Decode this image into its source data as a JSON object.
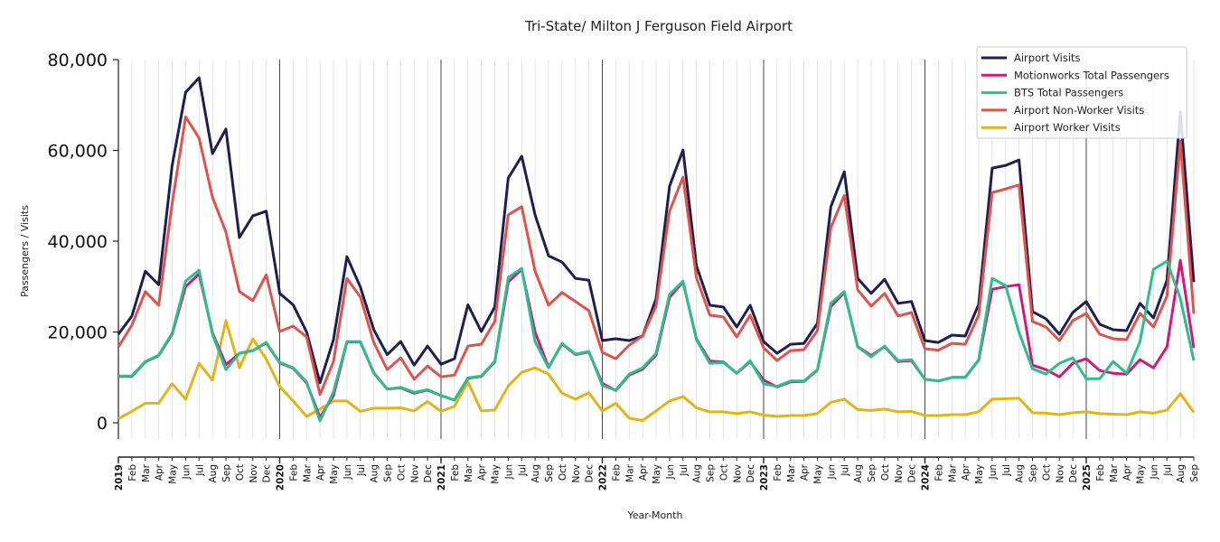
{
  "chart_data": {
    "type": "line",
    "title": "Tri-State/ Milton J Ferguson Field Airport",
    "xlabel": "Year-Month",
    "ylabel": "Passengers / Visits",
    "ylim": [
      -3000,
      80000
    ],
    "yticks": [
      0,
      20000,
      40000,
      60000,
      80000
    ],
    "ytick_labels": [
      "0",
      "20,000",
      "40,000",
      "60,000",
      "80,000"
    ],
    "grid": "vertical monthly gridlines, darker line at each January",
    "legend_position": "top-right",
    "x_start": "2019-01",
    "x_end": "2025-09",
    "month_labels": [
      "Jan",
      "Feb",
      "Mar",
      "Apr",
      "May",
      "Jun",
      "Jul",
      "Aug",
      "Sep",
      "Oct",
      "Nov",
      "Dec"
    ],
    "series": [
      {
        "name": "Airport Visits",
        "color": "#1f1f4f",
        "values": [
          19500,
          23500,
          33400,
          30400,
          56700,
          72800,
          76000,
          59300,
          64700,
          40800,
          45600,
          46600,
          28500,
          26000,
          20000,
          8800,
          18300,
          36600,
          29900,
          20500,
          15000,
          17900,
          12700,
          16900,
          12900,
          14100,
          26000,
          20100,
          25500,
          53900,
          58700,
          45800,
          36800,
          35400,
          31800,
          31400,
          18100,
          18500,
          18100,
          19100,
          27300,
          52100,
          60100,
          34600,
          25900,
          25500,
          21100,
          25900,
          17900,
          15300,
          17300,
          17500,
          21900,
          47600,
          55300,
          31800,
          28500,
          31600,
          26300,
          26700,
          18100,
          17700,
          19300,
          19100,
          26100,
          56100,
          56700,
          57900,
          24500,
          22900,
          19500,
          24300,
          26700,
          21700,
          20500,
          20300,
          26300,
          23100,
          31400,
          68500,
          31000
        ]
      },
      {
        "name": "Motionworks Total Passengers",
        "color": "#d0197f",
        "values": [
          10200,
          10200,
          13400,
          14800,
          19500,
          30000,
          32800,
          19800,
          12800,
          15300,
          15900,
          17600,
          13200,
          12000,
          8800,
          1200,
          6000,
          17800,
          17800,
          11000,
          7400,
          7700,
          6500,
          7200,
          6000,
          5000,
          9800,
          10200,
          13400,
          31000,
          33800,
          20000,
          12200,
          17400,
          15000,
          15600,
          8700,
          7100,
          10500,
          11800,
          14900,
          27600,
          31000,
          18500,
          13600,
          13400,
          10900,
          13500,
          9400,
          7900,
          9000,
          9100,
          11600,
          25600,
          28700,
          16800,
          14800,
          16800,
          13500,
          13700,
          9600,
          9200,
          10000,
          10000,
          13800,
          29400,
          30000,
          30400,
          12700,
          11700,
          10100,
          13100,
          14100,
          11500,
          10900,
          10700,
          13900,
          12100,
          16700,
          35800,
          16500
        ]
      },
      {
        "name": "BTS Total Passengers",
        "color": "#2ebd8c",
        "values": [
          10300,
          10300,
          13500,
          14900,
          19700,
          31200,
          33600,
          19500,
          11700,
          15300,
          15900,
          17700,
          13300,
          12100,
          9000,
          400,
          6800,
          17900,
          17900,
          10900,
          7400,
          7800,
          6700,
          7300,
          6000,
          5000,
          9900,
          10300,
          13500,
          32000,
          34000,
          17900,
          12100,
          17500,
          15100,
          15700,
          8200,
          7200,
          10700,
          12100,
          15300,
          28300,
          31200,
          18300,
          13100,
          13300,
          10900,
          13700,
          8600,
          8000,
          9200,
          9200,
          11700,
          26300,
          28900,
          16700,
          14500,
          16900,
          13700,
          13900,
          9600,
          9200,
          10000,
          10000,
          13900,
          31800,
          30200,
          19900,
          11900,
          10700,
          13100,
          14300,
          9700,
          9700,
          13500,
          10900,
          17900,
          33800,
          35600,
          27400,
          13700
        ]
      },
      {
        "name": "Airport Non-Worker Visits",
        "color": "#e0534d",
        "values": [
          16700,
          21500,
          28900,
          25900,
          48300,
          67400,
          62700,
          49700,
          42000,
          28900,
          26900,
          32600,
          20100,
          21300,
          18900,
          6200,
          13500,
          31800,
          27700,
          17700,
          11700,
          14300,
          9600,
          12500,
          10100,
          10500,
          16900,
          17300,
          22300,
          45800,
          47600,
          33400,
          25900,
          28700,
          26700,
          24700,
          15500,
          14100,
          17100,
          19100,
          25700,
          46600,
          54100,
          32000,
          23700,
          23300,
          18900,
          23700,
          16500,
          13700,
          15900,
          16100,
          20300,
          43000,
          50100,
          29300,
          25700,
          28500,
          23500,
          24300,
          16300,
          16000,
          17500,
          17300,
          23700,
          50700,
          51500,
          52400,
          22300,
          21100,
          18100,
          22500,
          24100,
          19500,
          18500,
          18300,
          24100,
          21100,
          27900,
          62000,
          24000
        ]
      },
      {
        "name": "Airport Worker Visits",
        "color": "#e3b417",
        "values": [
          900,
          2500,
          4300,
          4300,
          8600,
          5200,
          13100,
          9400,
          22500,
          12100,
          18500,
          14000,
          8000,
          4800,
          1400,
          3000,
          4800,
          4800,
          2500,
          3200,
          3200,
          3300,
          2600,
          4700,
          2500,
          3600,
          9000,
          2600,
          2800,
          8100,
          11100,
          12100,
          10700,
          6500,
          5200,
          6600,
          2600,
          4300,
          1000,
          500,
          2600,
          4800,
          5800,
          3300,
          2400,
          2400,
          2000,
          2400,
          1700,
          1400,
          1600,
          1600,
          2000,
          4500,
          5200,
          2900,
          2700,
          3000,
          2400,
          2500,
          1600,
          1600,
          1800,
          1800,
          2400,
          5200,
          5300,
          5400,
          2200,
          2100,
          1800,
          2200,
          2400,
          2000,
          1900,
          1800,
          2400,
          2100,
          2800,
          6400,
          2300
        ]
      }
    ]
  }
}
